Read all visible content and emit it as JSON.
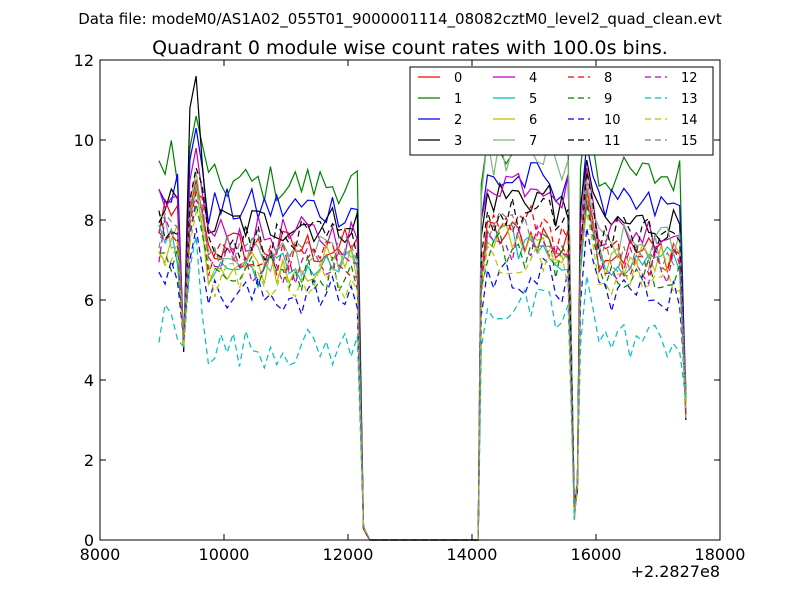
{
  "suptitle": "Data file: modeM0/AS1A02_055T01_9000001114_08082cztM0_level2_quad_clean.evt",
  "chart_data": {
    "type": "line",
    "title": "Quadrant 0 module wise count rates with 100.0s bins.",
    "xlabel": "",
    "ylabel": "",
    "xlim": [
      8000,
      18000
    ],
    "ylim": [
      0,
      12
    ],
    "x_offset_label": "+2.2827e8",
    "xticks": [
      8000,
      10000,
      12000,
      14000,
      16000,
      18000
    ],
    "xtick_labels": [
      "8000",
      "10000",
      "12000",
      "14000",
      "16000",
      "18000"
    ],
    "yticks": [
      0,
      2,
      4,
      6,
      8,
      10,
      12
    ],
    "ytick_labels": [
      "0",
      "2",
      "4",
      "6",
      "8",
      "10",
      "12"
    ],
    "legend_position": "top-right",
    "legend_columns": 4,
    "segments": [
      {
        "x_start": 8950,
        "x_end": 12150,
        "dip_x": 9300,
        "peak_x": 9550
      },
      {
        "x_start": 14150,
        "x_end": 15550
      },
      {
        "x_start": 15750,
        "x_end": 17450,
        "dip_x": 15650
      }
    ],
    "series": [
      {
        "name": "0",
        "color": "#ff0000",
        "dash": "solid",
        "level_a": 7.3,
        "level_b": 7.6,
        "level_c": 7.2,
        "peak": 9.0
      },
      {
        "name": "1",
        "color": "#008000",
        "dash": "solid",
        "level_a": 8.9,
        "level_b": 9.9,
        "level_c": 9.1,
        "peak": 10.6
      },
      {
        "name": "2",
        "color": "#0000ff",
        "dash": "solid",
        "level_a": 8.3,
        "level_b": 9.0,
        "level_c": 8.3,
        "peak": 10.3
      },
      {
        "name": "3",
        "color": "#000000",
        "dash": "solid",
        "level_a": 7.9,
        "level_b": 8.6,
        "level_c": 7.9,
        "peak": 11.6
      },
      {
        "name": "4",
        "color": "#bf00bf",
        "dash": "solid",
        "level_a": 7.6,
        "level_b": 9.0,
        "level_c": 7.7,
        "peak": 9.8
      },
      {
        "name": "5",
        "color": "#00bfbf",
        "dash": "solid",
        "level_a": 6.8,
        "level_b": 7.4,
        "level_c": 6.9,
        "peak": 8.8
      },
      {
        "name": "6",
        "color": "#bfbf00",
        "dash": "solid",
        "level_a": 6.9,
        "level_b": 7.5,
        "level_c": 7.0,
        "peak": 8.9
      },
      {
        "name": "7",
        "color": "#7fb27f",
        "dash": "solid",
        "level_a": 7.1,
        "level_b": 9.6,
        "level_c": 7.4,
        "peak": 9.2
      },
      {
        "name": "8",
        "color": "#ff0000",
        "dash": "dashed",
        "level_a": 7.0,
        "level_b": 7.9,
        "level_c": 7.1,
        "peak": 8.7
      },
      {
        "name": "9",
        "color": "#008000",
        "dash": "dashed",
        "level_a": 6.7,
        "level_b": 7.3,
        "level_c": 6.8,
        "peak": 8.4
      },
      {
        "name": "10",
        "color": "#0000ff",
        "dash": "dashed",
        "level_a": 6.1,
        "level_b": 6.6,
        "level_c": 6.2,
        "peak": 7.8
      },
      {
        "name": "11",
        "color": "#000000",
        "dash": "dashed",
        "level_a": 7.5,
        "level_b": 8.1,
        "level_c": 7.6,
        "peak": 9.3
      },
      {
        "name": "12",
        "color": "#bf00bf",
        "dash": "dashed",
        "level_a": 6.9,
        "level_b": 7.4,
        "level_c": 6.9,
        "peak": 8.5
      },
      {
        "name": "13",
        "color": "#00bfbf",
        "dash": "dashed",
        "level_a": 4.8,
        "level_b": 5.8,
        "level_c": 5.0,
        "peak": 7.6
      },
      {
        "name": "14",
        "color": "#bfbf00",
        "dash": "dashed",
        "level_a": 6.5,
        "level_b": 7.1,
        "level_c": 6.6,
        "peak": 8.2
      },
      {
        "name": "15",
        "color": "#7f7f7f",
        "dash": "dashed",
        "level_a": 7.2,
        "level_b": 7.8,
        "level_c": 7.2,
        "peak": 8.9
      }
    ]
  }
}
